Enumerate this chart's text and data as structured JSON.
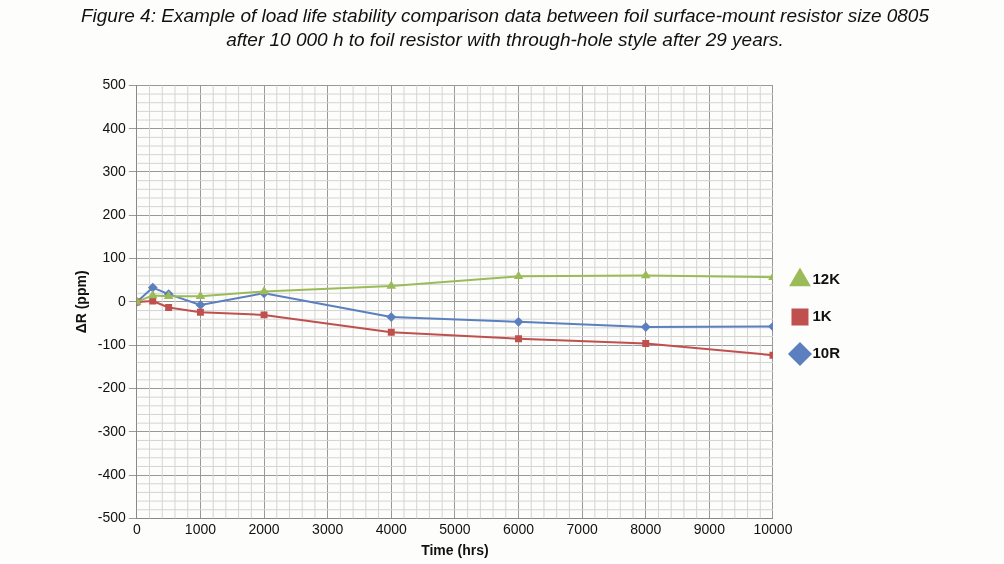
{
  "chart_data": {
    "type": "line",
    "title": "Figure 4: Example of load life stability comparison data between foil surface-mount resistor size 0805\nafter 10 000 h to foil resistor with through-hole style after 29 years.",
    "xlabel": "Time (hrs)",
    "ylabel": "ΔR (ppm)",
    "x": [
      0,
      250,
      500,
      1000,
      2000,
      4000,
      6000,
      8000,
      10000
    ],
    "series": [
      {
        "name": "10R",
        "color": "#5b7fbf",
        "marker": "diamond",
        "values": [
          0,
          33,
          18,
          -7,
          20,
          -35,
          -46,
          -58,
          -57
        ]
      },
      {
        "name": "1K",
        "color": "#c0504d",
        "marker": "square",
        "values": [
          0,
          2,
          -13,
          -24,
          -30,
          -70,
          -85,
          -96,
          -123
        ]
      },
      {
        "name": "12K",
        "color": "#9bbb59",
        "marker": "triangle",
        "values": [
          0,
          15,
          13,
          13,
          24,
          37,
          59,
          61,
          57
        ]
      }
    ],
    "xlim": [
      0,
      10000
    ],
    "xticks": [
      0,
      1000,
      2000,
      3000,
      4000,
      5000,
      6000,
      7000,
      8000,
      9000,
      10000
    ],
    "ylim": [
      -500,
      500
    ],
    "yticks": [
      -500,
      -400,
      -300,
      -200,
      -100,
      0,
      100,
      200,
      300,
      400,
      500
    ],
    "grid": true,
    "legend": "right",
    "line_style": "solid"
  }
}
